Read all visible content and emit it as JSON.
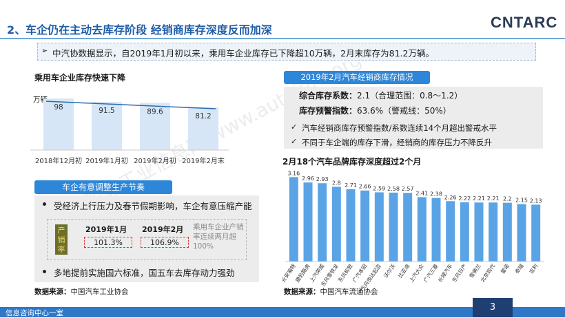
{
  "slide": {
    "title": "2、车企仍在主动去库存阶段 经销商库存深度反而加深",
    "logo": "CNTARC",
    "summary": "中汽协数据显示，自2019年1月初以来，乘用车企业库存已下降超10万辆，2月末库存为81.2万辆。",
    "watermark": "中国汽车工业信息网  www.autoinfo.org.cn",
    "footer": "信息咨询中心一室",
    "page_number": "3",
    "accent_color": "#2e86d8"
  },
  "left_top": {
    "title": "乘用车企业库存快速下降",
    "source_label": "数据来源：",
    "source": "中国汽车工业协会"
  },
  "left_bottom": {
    "pill": "车企有意调整生产节奏",
    "bullet1": "受经济上行压力及春节假期影响，车企有意压缩产能",
    "chip_label": "产销率",
    "col1": "2019年1月",
    "col2": "2019年2月",
    "val1": "101.3%",
    "val2": "106.9%",
    "note": "乘用车企业产销率连续两月超100%",
    "bullet2": "多地提前实施国六标准，国五车去库存动力强劲"
  },
  "right_top": {
    "pill": "2019年2月汽车经销商库存情况",
    "coef_label": "综合库存系数：",
    "coef_value": "2.1（合理范围：0.8～1.2）",
    "index_label": "库存预警指数：",
    "index_value": "63.6%（警戒线：50%）",
    "check1": "汽车经销商库存预警指数/系数连续14个月超出警戒水平",
    "check2": "不同于车企端的库存下滑，经销商的库存压力不降反升"
  },
  "right_bottom": {
    "title": "2月18个汽车品牌库存深度超过2个月",
    "source_label": "数据来源：",
    "source": "中国汽车流通协会"
  },
  "chart_data": [
    {
      "type": "bar",
      "title": "乘用车企业库存快速下降",
      "ylabel": "万辆",
      "categories": [
        "2018年12月初",
        "2019年1月初",
        "2019年2月初",
        "2019年2月末"
      ],
      "values": [
        98,
        91.5,
        89.6,
        81.2
      ],
      "ylim": [
        0,
        110
      ],
      "trendline": true,
      "bar_color": "#d7e6f6",
      "grid": false
    },
    {
      "type": "bar",
      "title": "2月18个汽车品牌库存深度超过2个月",
      "categories": [
        "长安福特",
        "捷豹路虎",
        "上汽荣威",
        "东风雪铁龙",
        "东风标致",
        "广汽本田",
        "东风悦达起亚",
        "沃尔沃",
        "比亚迪",
        "上汽大众",
        "广汽三菱",
        "长城汽车",
        "东风日产",
        "雪佛兰",
        "北京现代",
        "雷诺",
        "奇瑞",
        "吉利"
      ],
      "values": [
        3.16,
        2.96,
        2.93,
        2.8,
        2.71,
        2.66,
        2.59,
        2.58,
        2.57,
        2.41,
        2.38,
        2.26,
        2.22,
        2.21,
        2.21,
        2.2,
        2.15,
        2.13
      ],
      "ylim": [
        0,
        3.4
      ],
      "bar_color": "#5aa4e6",
      "grid": false
    }
  ]
}
